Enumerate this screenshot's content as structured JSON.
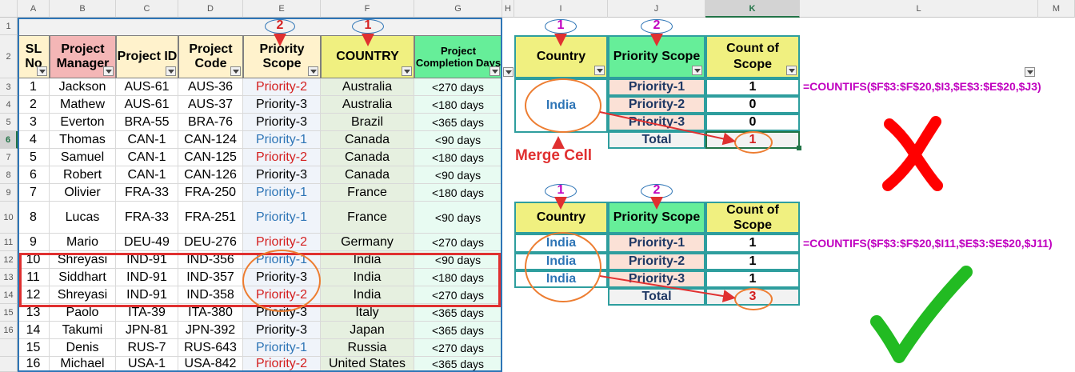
{
  "columns": [
    "A",
    "B",
    "C",
    "D",
    "E",
    "F",
    "G",
    "H",
    "I",
    "J",
    "K",
    "L",
    "M"
  ],
  "rows": [
    "1",
    "2",
    "3",
    "4",
    "5",
    "6",
    "7",
    "8",
    "9",
    "10",
    "11",
    "12",
    "13",
    "14",
    "15",
    "16"
  ],
  "table": {
    "headers": {
      "sl": "SL No",
      "manager": "Project Manager",
      "project_id": "Project ID",
      "project_code": "Project Code",
      "priority": "Priority Scope",
      "country": "COUNTRY",
      "days": "Project Completion Days"
    },
    "rows": [
      {
        "sl": "1",
        "manager": "Jackson",
        "id": "AUS-61",
        "code": "AUS-36",
        "priority": "Priority-2",
        "country": "Australia",
        "days": "<270 days"
      },
      {
        "sl": "2",
        "manager": "Mathew",
        "id": "AUS-61",
        "code": "AUS-37",
        "priority": "Priority-3",
        "country": "Australia",
        "days": "<180 days"
      },
      {
        "sl": "3",
        "manager": "Everton",
        "id": "BRA-55",
        "code": "BRA-76",
        "priority": "Priority-3",
        "country": "Brazil",
        "days": "<365 days"
      },
      {
        "sl": "4",
        "manager": "Thomas",
        "id": "CAN-1",
        "code": "CAN-124",
        "priority": "Priority-1",
        "country": "Canada",
        "days": "<90 days"
      },
      {
        "sl": "5",
        "manager": "Samuel",
        "id": "CAN-1",
        "code": "CAN-125",
        "priority": "Priority-2",
        "country": "Canada",
        "days": "<180 days"
      },
      {
        "sl": "6",
        "manager": "Robert",
        "id": "CAN-1",
        "code": "CAN-126",
        "priority": "Priority-3",
        "country": "Canada",
        "days": "<90 days"
      },
      {
        "sl": "7",
        "manager": "Olivier",
        "id": "FRA-33",
        "code": "FRA-250",
        "priority": "Priority-1",
        "country": "France",
        "days": "<180 days"
      },
      {
        "sl": "8",
        "manager": "Lucas",
        "id": "FRA-33",
        "code": "FRA-251",
        "priority": "Priority-1",
        "country": "France",
        "days": "<90 days"
      },
      {
        "sl": "9",
        "manager": "Mario",
        "id": "DEU-49",
        "code": "DEU-276",
        "priority": "Priority-2",
        "country": "Germany",
        "days": "<270 days"
      },
      {
        "sl": "10",
        "manager": "Shreyasi",
        "id": "IND-91",
        "code": "IND-356",
        "priority": "Priority-1",
        "country": "India",
        "days": "<90 days"
      },
      {
        "sl": "11",
        "manager": "Siddhart",
        "id": "IND-91",
        "code": "IND-357",
        "priority": "Priority-3",
        "country": "India",
        "days": "<180 days"
      },
      {
        "sl": "12",
        "manager": "Shreyasi",
        "id": "IND-91",
        "code": "IND-358",
        "priority": "Priority-2",
        "country": "India",
        "days": "<270 days"
      },
      {
        "sl": "13",
        "manager": "Paolo",
        "id": "ITA-39",
        "code": "ITA-380",
        "priority": "Priority-3",
        "country": "Italy",
        "days": "<365 days"
      },
      {
        "sl": "14",
        "manager": "Takumi",
        "id": "JPN-81",
        "code": "JPN-392",
        "priority": "Priority-3",
        "country": "Japan",
        "days": "<365 days"
      },
      {
        "sl": "15",
        "manager": "Denis",
        "id": "RUS-7",
        "code": "RUS-643",
        "priority": "Priority-1",
        "country": "Russia",
        "days": "<270 days"
      },
      {
        "sl": "16",
        "manager": "Michael",
        "id": "USA-1",
        "code": "USA-842",
        "priority": "Priority-2",
        "country": "United States",
        "days": "<365 days"
      }
    ]
  },
  "top_summary": {
    "country_header": "Country",
    "priority_header": "Priority Scope",
    "count_header": "Count of Scope",
    "country": "India",
    "priorities": [
      "Priority-1",
      "Priority-2",
      "Priority-3"
    ],
    "counts": [
      "1",
      "0",
      "0"
    ],
    "total_label": "Total",
    "total": "1",
    "formula": "=COUNTIFS($F$3:$F$20,$I3,$E$3:$E$20,$J3)"
  },
  "bottom_summary": {
    "country_header": "Country",
    "priority_header": "Priority Scope",
    "count_header": "Count of Scope",
    "countries": [
      "India",
      "India",
      "India"
    ],
    "priorities": [
      "Priority-1",
      "Priority-2",
      "Priority-3"
    ],
    "counts": [
      "1",
      "1",
      "1"
    ],
    "total_label": "Total",
    "total": "3",
    "formula": "=COUNTIFS($F$3:$F$20,$I11,$E$3:$E$20,$J11)"
  },
  "annotations": {
    "merge_cell": "Merge Cell",
    "mark_1": "1",
    "mark_2": "2"
  },
  "colors": {
    "priority_1": "#2e75b6",
    "priority_2": "#d42020",
    "formula": "#c000c0",
    "highlight": "#ed7d31",
    "selection": "#217346"
  }
}
